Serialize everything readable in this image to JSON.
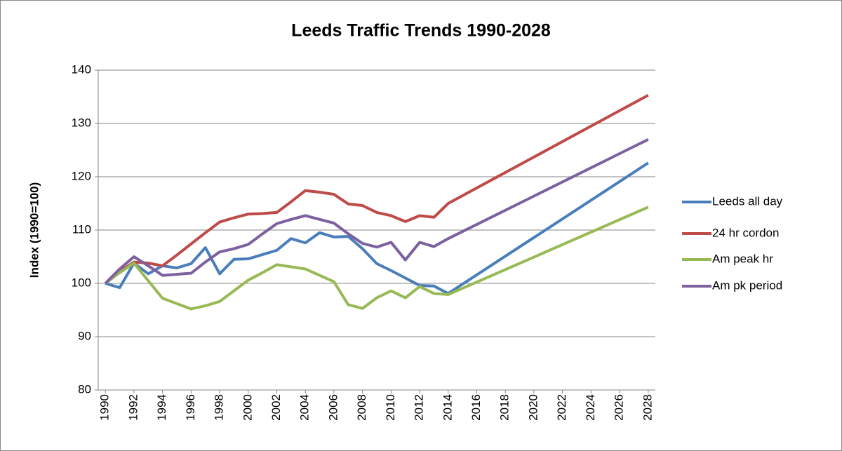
{
  "chart_data": {
    "type": "line",
    "title": "Leeds Traffic Trends 1990-2028",
    "y_label": "Index (1990=100)",
    "x": [
      1990,
      1991,
      1992,
      1993,
      1994,
      1995,
      1996,
      1997,
      1998,
      1999,
      2000,
      2001,
      2002,
      2003,
      2004,
      2005,
      2006,
      2007,
      2008,
      2009,
      2010,
      2011,
      2012,
      2013,
      2014,
      2028
    ],
    "series": [
      {
        "name": "Leeds all day",
        "color": "#4a7ebb",
        "values": [
          100,
          99.2,
          103.8,
          101.8,
          103.3,
          102.9,
          103.7,
          106.7,
          101.8,
          104.5,
          104.6,
          105.4,
          106.2,
          108.4,
          107.6,
          109.5,
          108.7,
          108.8,
          106.5,
          103.7,
          102.4,
          101,
          99.6,
          99.5,
          98.1,
          122.6
        ]
      },
      {
        "name": "24 hr cordon",
        "color": "#be4b48",
        "values": [
          100,
          102.2,
          104,
          103.8,
          103.3,
          105.3,
          107.4,
          109.5,
          111.5,
          112.3,
          113,
          113.1,
          113.3,
          115.3,
          117.4,
          117.1,
          116.7,
          114.9,
          114.6,
          113.3,
          112.7,
          111.6,
          112.7,
          112.4,
          115,
          135.3
        ]
      },
      {
        "name": "Am peak hr",
        "color": "#98b954",
        "values": [
          100,
          102,
          103.8,
          100.5,
          97.2,
          96.2,
          95.2,
          95.8,
          96.6,
          98.6,
          100.6,
          102,
          103.5,
          103.1,
          102.7,
          101.5,
          100.3,
          96,
          95.3,
          97.3,
          98.6,
          97.3,
          99.4,
          98.1,
          97.9,
          114.3
        ]
      },
      {
        "name": "Am pk period",
        "color": "#7d60a0",
        "values": [
          100,
          102.7,
          105,
          103.3,
          101.5,
          101.7,
          101.9,
          104,
          105.9,
          106.5,
          107.3,
          109.3,
          111.2,
          112,
          112.7,
          112,
          111.3,
          109.3,
          107.5,
          106.8,
          107.7,
          104.4,
          107.7,
          106.9,
          108.4,
          127
        ]
      }
    ],
    "xlim": [
      1989.5,
      2028.5
    ],
    "xticks": [
      1990,
      1992,
      1994,
      1996,
      1998,
      2000,
      2002,
      2004,
      2006,
      2008,
      2010,
      2012,
      2014,
      2016,
      2018,
      2020,
      2022,
      2024,
      2026,
      2028
    ],
    "ylim": [
      80,
      140
    ],
    "yticks": [
      80,
      90,
      100,
      110,
      120,
      130,
      140
    ],
    "grid": true,
    "legend": "right"
  }
}
